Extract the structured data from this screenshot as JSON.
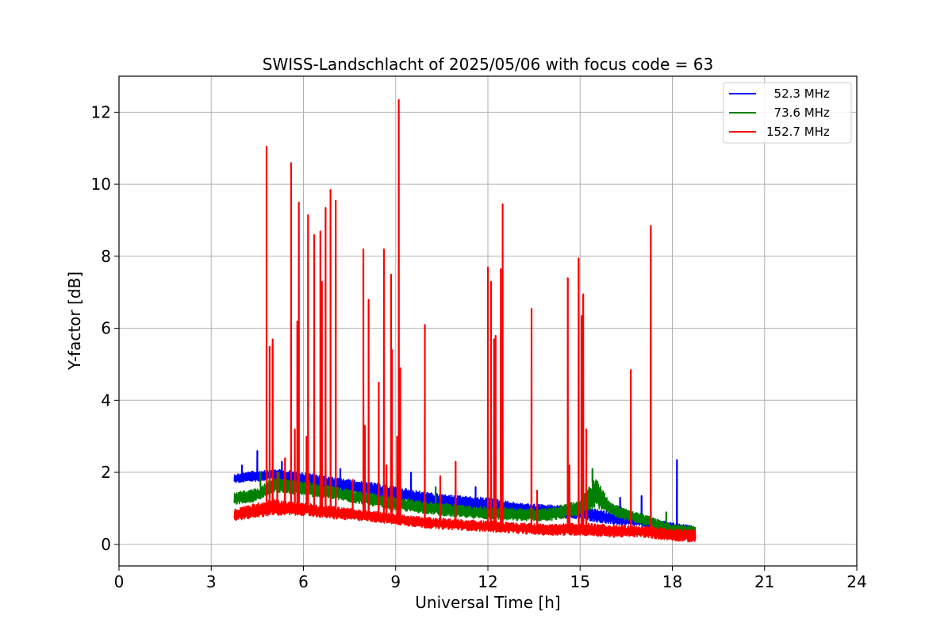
{
  "chart_data": {
    "type": "line",
    "title": "SWISS-Landschlacht of 2025/05/06 with focus code = 63",
    "xlabel": "Universal Time [h]",
    "ylabel": "Y-factor [dB]",
    "xlim": [
      0,
      24
    ],
    "ylim": [
      -0.6,
      13.0
    ],
    "xticks": [
      0,
      3,
      6,
      9,
      12,
      15,
      18,
      21,
      24
    ],
    "xtick_labels": [
      "0",
      "3",
      "6",
      "9",
      "12",
      "15",
      "18",
      "21",
      "24"
    ],
    "yticks": [
      0,
      2,
      4,
      6,
      8,
      10,
      12
    ],
    "ytick_labels": [
      "0",
      "2",
      "4",
      "6",
      "8",
      "10",
      "12"
    ],
    "grid": true,
    "legend_position": "top-right",
    "series": [
      {
        "name": "52.3 MHz",
        "legend_label": "  52.3 MHz",
        "color": "#0000ff",
        "band_x": [
          3.75,
          4.5,
          5.0,
          6.0,
          7.0,
          8.0,
          9.0,
          10.0,
          11.0,
          12.0,
          13.0,
          14.0,
          15.0,
          16.0,
          17.0,
          18.0,
          18.75
        ],
        "band_lo": [
          1.7,
          1.75,
          1.8,
          1.65,
          1.55,
          1.35,
          1.25,
          1.05,
          1.0,
          0.9,
          0.85,
          0.75,
          0.7,
          0.55,
          0.5,
          0.35,
          0.1
        ],
        "band_hi": [
          1.95,
          2.05,
          2.1,
          2.0,
          1.85,
          1.75,
          1.6,
          1.45,
          1.35,
          1.3,
          1.15,
          1.1,
          1.05,
          0.9,
          0.75,
          0.6,
          0.5
        ],
        "spikes": [
          [
            4.0,
            2.2
          ],
          [
            4.5,
            2.6
          ],
          [
            5.3,
            2.3
          ],
          [
            7.2,
            2.1
          ],
          [
            9.5,
            2.0
          ],
          [
            11.6,
            1.6
          ],
          [
            14.6,
            1.55
          ],
          [
            15.2,
            1.3
          ],
          [
            16.3,
            1.3
          ],
          [
            17.0,
            1.35
          ],
          [
            18.15,
            2.35
          ]
        ]
      },
      {
        "name": "73.6 MHz",
        "legend_label": "  73.6 MHz",
        "color": "#008000",
        "band_x": [
          3.75,
          4.5,
          5.0,
          6.0,
          7.0,
          8.0,
          9.0,
          10.0,
          11.0,
          12.0,
          13.0,
          14.0,
          15.0,
          15.5,
          16.0,
          17.0,
          18.0,
          18.75
        ],
        "band_lo": [
          1.1,
          1.2,
          1.45,
          1.35,
          1.25,
          1.1,
          0.95,
          0.85,
          0.75,
          0.7,
          0.65,
          0.65,
          0.8,
          1.05,
          0.8,
          0.55,
          0.3,
          0.2
        ],
        "band_hi": [
          1.45,
          1.55,
          1.85,
          1.75,
          1.6,
          1.45,
          1.3,
          1.2,
          1.1,
          1.05,
          1.0,
          1.0,
          1.25,
          1.85,
          1.15,
          0.85,
          0.55,
          0.5
        ],
        "spikes": [
          [
            4.6,
            2.0
          ],
          [
            5.2,
            2.0
          ],
          [
            8.1,
            1.7
          ],
          [
            10.3,
            1.6
          ],
          [
            15.4,
            2.1
          ],
          [
            17.8,
            0.9
          ]
        ]
      },
      {
        "name": "152.7 MHz",
        "legend_label": "152.7 MHz",
        "color": "#ff0000",
        "band_x": [
          3.75,
          4.5,
          5.0,
          6.0,
          7.0,
          8.0,
          9.0,
          10.0,
          11.0,
          12.0,
          13.0,
          14.0,
          15.0,
          16.0,
          17.0,
          18.0,
          18.75
        ],
        "band_lo": [
          0.65,
          0.75,
          0.8,
          0.8,
          0.7,
          0.65,
          0.55,
          0.45,
          0.4,
          0.35,
          0.3,
          0.25,
          0.25,
          0.2,
          0.2,
          0.1,
          0.05
        ],
        "band_hi": [
          1.0,
          1.15,
          1.25,
          1.15,
          1.05,
          0.95,
          0.85,
          0.75,
          0.7,
          0.65,
          0.6,
          0.55,
          0.6,
          0.55,
          0.5,
          0.45,
          0.4
        ],
        "spikes": [
          [
            4.8,
            11.05
          ],
          [
            4.9,
            5.5
          ],
          [
            5.0,
            5.7
          ],
          [
            5.15,
            2.0
          ],
          [
            5.4,
            2.4
          ],
          [
            5.6,
            10.6
          ],
          [
            5.72,
            3.2
          ],
          [
            5.8,
            6.2
          ],
          [
            5.85,
            9.5
          ],
          [
            6.1,
            3.0
          ],
          [
            6.15,
            9.15
          ],
          [
            6.35,
            8.6
          ],
          [
            6.55,
            8.7
          ],
          [
            6.6,
            7.3
          ],
          [
            6.72,
            9.35
          ],
          [
            6.88,
            9.85
          ],
          [
            7.05,
            9.55
          ],
          [
            7.6,
            1.8
          ],
          [
            7.95,
            8.2
          ],
          [
            8.0,
            3.3
          ],
          [
            8.12,
            6.8
          ],
          [
            8.45,
            4.5
          ],
          [
            8.62,
            8.2
          ],
          [
            8.7,
            2.2
          ],
          [
            8.85,
            7.5
          ],
          [
            8.88,
            5.4
          ],
          [
            9.05,
            3.0
          ],
          [
            9.1,
            12.35
          ],
          [
            9.15,
            4.9
          ],
          [
            9.95,
            6.1
          ],
          [
            10.45,
            1.9
          ],
          [
            10.95,
            2.3
          ],
          [
            12.0,
            7.7
          ],
          [
            12.1,
            7.3
          ],
          [
            12.2,
            5.7
          ],
          [
            12.25,
            5.8
          ],
          [
            12.42,
            7.65
          ],
          [
            12.48,
            9.45
          ],
          [
            13.42,
            6.55
          ],
          [
            13.6,
            1.5
          ],
          [
            14.6,
            7.4
          ],
          [
            14.65,
            2.2
          ],
          [
            14.95,
            7.95
          ],
          [
            15.05,
            6.35
          ],
          [
            15.1,
            6.95
          ],
          [
            15.2,
            3.2
          ],
          [
            16.65,
            4.85
          ],
          [
            17.3,
            8.85
          ]
        ]
      }
    ]
  }
}
